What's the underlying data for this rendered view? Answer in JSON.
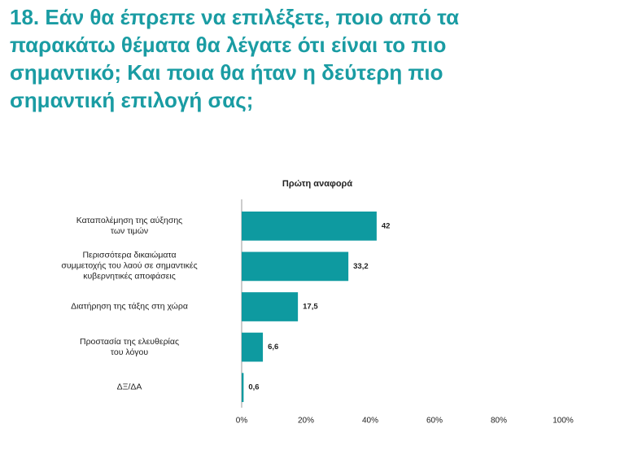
{
  "chart_data": {
    "type": "bar",
    "orientation": "horizontal",
    "title": "18. Εάν θα έπρεπε να επιλέξετε, ποιο από τα παρακάτω θέματα θα λέγατε ότι είναι το πιο σημαντικό; Και ποια θα ήταν η δεύτερη πιο σημαντική επιλογή σας;",
    "subtitle": "Πρώτη αναφορά",
    "categories": [
      "Καταπολέμηση της αύξησης\nτων τιμών",
      "Περισσότερα δικαιώματα\nσυμμετοχής του λαού σε σημαντικές\nκυβερνητικές αποφάσεις",
      "Διατήρηση της τάξης στη χώρα",
      "Προστασία της ελευθερίας\nτου λόγου",
      "ΔΞ/ΔΑ"
    ],
    "values": [
      42,
      33.2,
      17.5,
      6.6,
      0.6
    ],
    "value_labels": [
      "42",
      "33,2",
      "17,5",
      "6,6",
      "0,6"
    ],
    "color": "#0e9aa0",
    "xlim": [
      0,
      100
    ],
    "xticks": [
      {
        "value": 0,
        "label": "0%"
      },
      {
        "value": 20,
        "label": "20%"
      },
      {
        "value": 40,
        "label": "40%"
      },
      {
        "value": 60,
        "label": "60%"
      },
      {
        "value": 80,
        "label": "80%"
      },
      {
        "value": 100,
        "label": "100%"
      }
    ],
    "grid": false
  }
}
